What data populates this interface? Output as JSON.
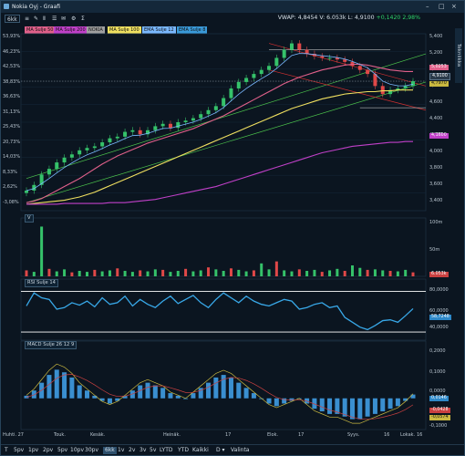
{
  "window": {
    "title": "Nokia Oyj - Graafi",
    "controls": [
      "–",
      "□",
      "×"
    ]
  },
  "toolbar": {
    "period": "6kk",
    "items": [
      "≡",
      "✎",
      "Ⅱ",
      "☰",
      "✉",
      "⚙",
      "Σ"
    ]
  },
  "ohlc": {
    "vwap_label": "VWAP:",
    "vwap": "4,8454",
    "vol_label": "V:",
    "vol": "6.053k",
    "last_label": "L:",
    "last": "4,9100",
    "chg": "+0,1420",
    "chg_pct": "2,98%"
  },
  "side_tab": "Tekniikka",
  "indicators": [
    {
      "label": "MA Sulje 50",
      "color": "#e0608a"
    },
    {
      "label": "MA Sulje 200",
      "color": "#c040c8"
    },
    {
      "label": "NOKIA",
      "color": "#a0a0a0"
    },
    {
      "label": "MA Sulje 100",
      "color": "#f0e060"
    },
    {
      "label": "EMA Sulje 12",
      "color": "#7ab8ff"
    },
    {
      "label": "EMA Sulje 8",
      "color": "#3a9ad9"
    }
  ],
  "price_axis": [
    "5,400",
    "5,200",
    "5,000",
    "4,800",
    "4,600",
    "4,400",
    "4,200",
    "4,000",
    "3,800",
    "3,600",
    "3,400"
  ],
  "price_tags": [
    {
      "text": "5,0253",
      "color": "#e0608a"
    },
    {
      "text": "4,9100",
      "color": "#2a3a4a"
    },
    {
      "text": "4,7970",
      "color": "#f0e060"
    },
    {
      "text": "4,1600",
      "color": "#c040c8"
    }
  ],
  "pct_axis": [
    "53,93%",
    "46,23%",
    "42,53%",
    "38,83%",
    "36,63%",
    "31,13%",
    "25,43%",
    "20,73%",
    "14,03%",
    "8,33%",
    "2,62%",
    "-3,08%"
  ],
  "volume": {
    "label": "V",
    "axis": [
      "100m",
      "50m"
    ],
    "last_tag": "6.053k"
  },
  "rsi": {
    "label": "RSI Sulje 14",
    "axis": [
      "80,0000",
      "60,0000",
      "40,0000"
    ],
    "last_tag": "58,7248"
  },
  "macd": {
    "label": "MACD Sulje 26 12 9",
    "axis": [
      "0,2000",
      "0,1000",
      "0,0000",
      "-0,1000"
    ],
    "tags": [
      "0,0146",
      "-0,0428",
      "-0,0574"
    ]
  },
  "time_axis": [
    "Huhti. 27",
    "Touk.",
    "Kesäk.",
    "Heinäk.",
    "17",
    "Elok.",
    "17",
    "Syys.",
    "16",
    "Lokak.",
    "16"
  ],
  "range_buttons": [
    "T",
    "5pv",
    "1pv",
    "2pv",
    "5pv",
    "10pv",
    "30pv",
    "6kk",
    "1v",
    "2v",
    "3v",
    "5v",
    "LYTD",
    "YTD",
    "Kaikki",
    "D ▾",
    "Valinta"
  ],
  "range_selected": "6kk",
  "chart_data": [
    {
      "type": "line",
      "title": "",
      "series": [
        {
          "name": "NOKIA",
          "values": [
            3.55,
            3.62,
            3.75,
            3.82,
            3.9,
            3.96,
            4.0,
            4.05,
            4.08,
            4.1,
            4.15,
            4.2,
            4.22,
            4.28,
            4.3,
            4.25,
            4.3,
            4.35,
            4.38,
            4.33,
            4.4,
            4.42,
            4.45,
            4.5,
            4.55,
            4.6,
            4.7,
            4.82,
            4.9,
            4.95,
            5.0,
            5.05,
            5.1,
            5.2,
            5.3,
            5.38,
            5.3,
            5.25,
            5.22,
            5.2,
            5.2,
            5.18,
            5.15,
            5.1,
            5.05,
            5.0,
            4.85,
            4.75,
            4.8,
            4.82,
            4.85,
            4.91
          ]
        },
        {
          "name": "MA Sulje 50",
          "values": [
            3.4,
            3.42,
            3.45,
            3.5,
            3.55,
            3.6,
            3.65,
            3.7,
            3.76,
            3.82,
            3.88,
            3.93,
            3.98,
            4.02,
            4.06,
            4.1,
            4.14,
            4.17,
            4.2,
            4.23,
            4.26,
            4.29,
            4.32,
            4.36,
            4.4,
            4.44,
            4.48,
            4.53,
            4.58,
            4.63,
            4.68,
            4.73,
            4.78,
            4.83,
            4.88,
            4.92,
            4.96,
            4.99,
            5.02,
            5.05,
            5.07,
            5.09,
            5.11,
            5.12,
            5.12,
            5.11,
            5.09,
            5.07,
            5.05,
            5.04,
            5.03,
            5.03
          ]
        },
        {
          "name": "MA Sulje 100",
          "values": [
            3.38,
            3.39,
            3.4,
            3.41,
            3.42,
            3.43,
            3.45,
            3.47,
            3.5,
            3.53,
            3.57,
            3.61,
            3.65,
            3.69,
            3.73,
            3.77,
            3.81,
            3.85,
            3.89,
            3.93,
            3.97,
            4.01,
            4.05,
            4.09,
            4.13,
            4.17,
            4.21,
            4.25,
            4.29,
            4.33,
            4.37,
            4.41,
            4.45,
            4.49,
            4.53,
            4.57,
            4.6,
            4.63,
            4.66,
            4.69,
            4.71,
            4.73,
            4.75,
            4.76,
            4.77,
            4.78,
            4.78,
            4.79,
            4.79,
            4.8,
            4.8,
            4.8
          ]
        },
        {
          "name": "MA Sulje 200",
          "values": [
            3.38,
            3.38,
            3.38,
            3.38,
            3.38,
            3.39,
            3.39,
            3.39,
            3.39,
            3.39,
            3.39,
            3.4,
            3.4,
            3.4,
            3.41,
            3.42,
            3.43,
            3.44,
            3.46,
            3.48,
            3.5,
            3.52,
            3.54,
            3.56,
            3.58,
            3.6,
            3.63,
            3.66,
            3.69,
            3.72,
            3.75,
            3.78,
            3.81,
            3.84,
            3.87,
            3.9,
            3.93,
            3.96,
            3.99,
            4.02,
            4.04,
            4.06,
            4.08,
            4.1,
            4.11,
            4.12,
            4.13,
            4.14,
            4.15,
            4.15,
            4.16,
            4.16
          ]
        }
      ],
      "ylim": [
        3.3,
        5.5
      ]
    },
    {
      "type": "bar",
      "title": "",
      "values": [
        12,
        9,
        100,
        15,
        10,
        14,
        8,
        11,
        9,
        13,
        10,
        12,
        16,
        11,
        9,
        12,
        10,
        14,
        13,
        9,
        11,
        15,
        10,
        12,
        18,
        14,
        11,
        16,
        13,
        10,
        12,
        26,
        14,
        30,
        12,
        10,
        14,
        11,
        13,
        9,
        12,
        15,
        11,
        22,
        17,
        13,
        14,
        12,
        11,
        10,
        13,
        8
      ],
      "ylim": [
        0,
        110
      ]
    },
    {
      "type": "line",
      "title": "",
      "values": [
        62,
        78,
        72,
        70,
        58,
        60,
        66,
        63,
        68,
        61,
        72,
        64,
        66,
        74,
        62,
        70,
        64,
        60,
        68,
        74,
        65,
        70,
        75,
        66,
        60,
        70,
        78,
        72,
        66,
        74,
        68,
        64,
        62,
        66,
        70,
        68,
        58,
        60,
        64,
        66,
        60,
        62,
        48,
        42,
        36,
        33,
        38,
        44,
        45,
        42,
        50,
        58.7
      ],
      "ylim": [
        20,
        95
      ]
    },
    {
      "type": "bar",
      "title": "",
      "values": [
        0.01,
        0.03,
        0.06,
        0.09,
        0.11,
        0.1,
        0.08,
        0.05,
        0.03,
        0.01,
        -0.01,
        -0.02,
        -0.01,
        0.01,
        0.03,
        0.05,
        0.06,
        0.05,
        0.04,
        0.02,
        0.01,
        0.0,
        0.02,
        0.04,
        0.06,
        0.08,
        0.09,
        0.08,
        0.06,
        0.04,
        0.02,
        0.0,
        -0.02,
        -0.03,
        -0.02,
        -0.01,
        0.0,
        -0.02,
        -0.04,
        -0.05,
        -0.06,
        -0.06,
        -0.07,
        -0.08,
        -0.08,
        -0.07,
        -0.06,
        -0.05,
        -0.04,
        -0.03,
        -0.01,
        0.0146
      ],
      "ylim": [
        -0.12,
        0.22
      ]
    }
  ]
}
